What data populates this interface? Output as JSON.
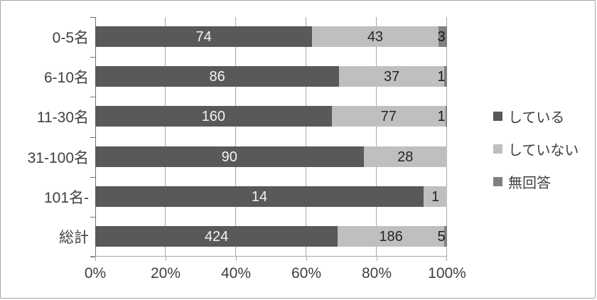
{
  "chart_data": {
    "type": "bar",
    "subtype": "horizontal-stacked-100-percent",
    "title": "",
    "categories": [
      "0-5名",
      "6-10名",
      "11-30名",
      "31-100名",
      "101名-",
      "総計"
    ],
    "series": [
      {
        "name": "している",
        "color": "#595959",
        "label_color": "#f2f2f2",
        "values": [
          74,
          86,
          160,
          90,
          14,
          424
        ]
      },
      {
        "name": "していない",
        "color": "#bfbfbf",
        "label_color": "#262626",
        "values": [
          43,
          37,
          77,
          28,
          1,
          186
        ]
      },
      {
        "name": "無回答",
        "color": "#808080",
        "label_color": "#1a1a1a",
        "values": [
          3,
          1,
          1,
          0,
          0,
          5
        ]
      }
    ],
    "x_tick_labels": [
      "0%",
      "20%",
      "40%",
      "60%",
      "80%",
      "100%"
    ],
    "x_range": [
      0,
      100
    ],
    "grid": true,
    "data_labels": "shown when value > 0",
    "legend_position": "right"
  },
  "colors": {
    "gridline": "#a6a6a6",
    "axis": "#737373",
    "frame_border": "#a6a6a6",
    "text": "#404040",
    "background": "#ffffff"
  }
}
